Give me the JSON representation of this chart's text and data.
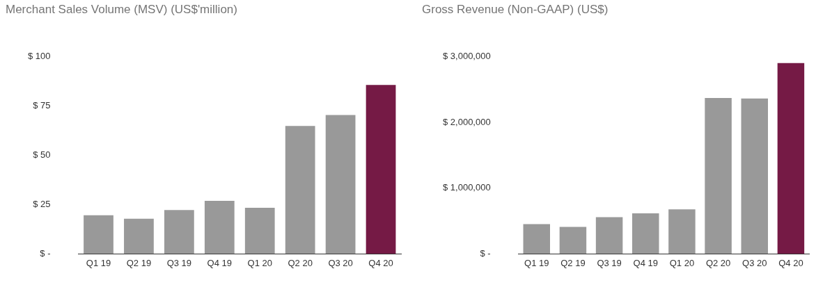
{
  "chart_data": [
    {
      "type": "bar",
      "title": "Merchant Sales Volume (MSV) (US$'million)",
      "categories": [
        "Q1 19",
        "Q2 19",
        "Q3 19",
        "Q4 19",
        "Q1 20",
        "Q2 20",
        "Q3 20",
        "Q4 20"
      ],
      "values": [
        19.6,
        17.8,
        22.2,
        26.9,
        23.4,
        64.9,
        70.5,
        85.7
      ],
      "colors": [
        "#999999",
        "#999999",
        "#999999",
        "#999999",
        "#999999",
        "#999999",
        "#999999",
        "#751a45"
      ],
      "ylim": [
        0,
        100
      ],
      "yticks": [
        {
          "value": 0,
          "label": "$ -"
        },
        {
          "value": 25,
          "label": "$ 25"
        },
        {
          "value": 50,
          "label": "$ 50"
        },
        {
          "value": 75,
          "label": "$ 75"
        },
        {
          "value": 100,
          "label": "$ 100"
        }
      ],
      "grid": false,
      "legend": false
    },
    {
      "type": "bar",
      "title": "Gross Revenue (Non-GAAP) (US$)",
      "categories": [
        "Q1 19",
        "Q2 19",
        "Q3 19",
        "Q4 19",
        "Q1 20",
        "Q2 20",
        "Q3 20",
        "Q4 20"
      ],
      "values": [
        452000,
        409000,
        557000,
        617000,
        678000,
        2374000,
        2365000,
        2904000
      ],
      "colors": [
        "#999999",
        "#999999",
        "#999999",
        "#999999",
        "#999999",
        "#999999",
        "#999999",
        "#751a45"
      ],
      "ylim": [
        0,
        3000000
      ],
      "yticks": [
        {
          "value": 0,
          "label": "$ -"
        },
        {
          "value": 1000000,
          "label": "$ 1,000,000"
        },
        {
          "value": 2000000,
          "label": "$ 2,000,000"
        },
        {
          "value": 3000000,
          "label": "$ 3,000,000"
        }
      ],
      "grid": false,
      "legend": false
    }
  ]
}
